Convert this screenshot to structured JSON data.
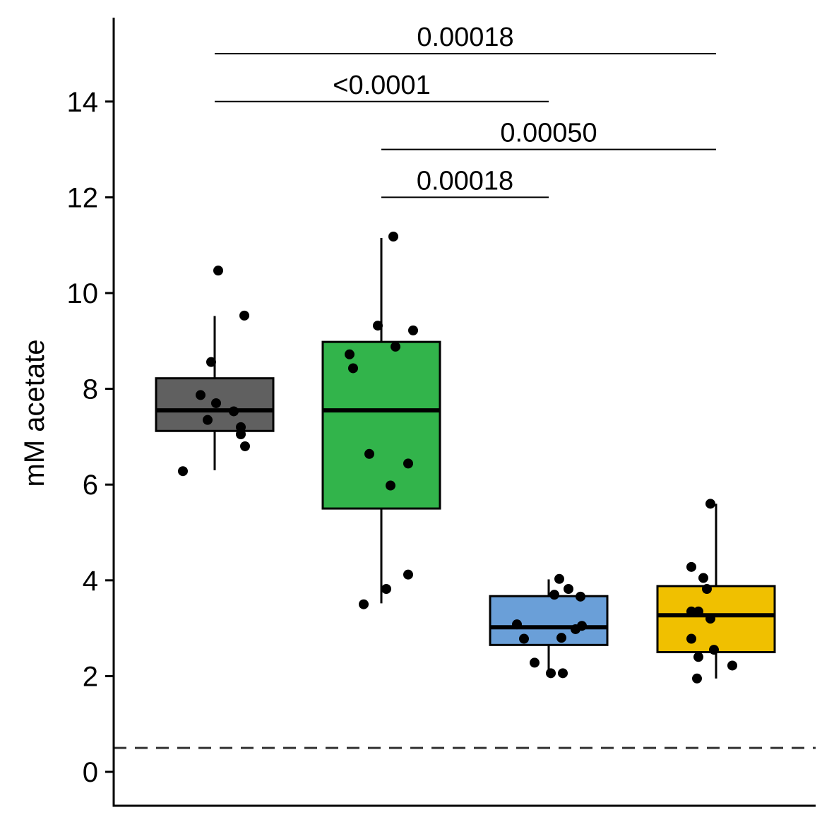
{
  "chart_data": {
    "type": "boxplot",
    "ylabel": "mM acetate",
    "xlabel": "",
    "ylim": [
      -0.7,
      15.7
    ],
    "yticks": [
      0,
      2,
      4,
      6,
      8,
      10,
      12,
      14
    ],
    "ytick_labels": [
      "0",
      "2",
      "4",
      "6",
      "8",
      "10",
      "12",
      "14"
    ],
    "grid": false,
    "reference_line": {
      "y": 0.5,
      "style": "dashed",
      "color": "#333333"
    },
    "groups": [
      {
        "color": "#606060",
        "box": {
          "whisker_low": 6.3,
          "q1": 7.12,
          "median": 7.55,
          "q3": 8.22,
          "whisker_high": 9.52
        },
        "points": [
          {
            "dx": 0.05,
            "y": 10.47
          },
          {
            "dx": 0.42,
            "y": 9.53
          },
          {
            "dx": -0.05,
            "y": 8.56
          },
          {
            "dx": -0.2,
            "y": 7.87
          },
          {
            "dx": 0.02,
            "y": 7.7
          },
          {
            "dx": 0.27,
            "y": 7.53
          },
          {
            "dx": -0.1,
            "y": 7.35
          },
          {
            "dx": 0.37,
            "y": 7.2
          },
          {
            "dx": 0.37,
            "y": 7.05
          },
          {
            "dx": 0.43,
            "y": 6.8
          },
          {
            "dx": -0.45,
            "y": 6.28
          }
        ]
      },
      {
        "color": "#32b44b",
        "box": {
          "whisker_low": 3.52,
          "q1": 5.5,
          "median": 7.55,
          "q3": 8.98,
          "whisker_high": 11.15
        },
        "points": [
          {
            "dx": 0.17,
            "y": 11.18
          },
          {
            "dx": -0.05,
            "y": 9.32
          },
          {
            "dx": 0.45,
            "y": 9.22
          },
          {
            "dx": 0.2,
            "y": 8.88
          },
          {
            "dx": -0.45,
            "y": 8.72
          },
          {
            "dx": -0.4,
            "y": 8.43
          },
          {
            "dx": -0.17,
            "y": 6.64
          },
          {
            "dx": 0.38,
            "y": 6.44
          },
          {
            "dx": 0.13,
            "y": 5.98
          },
          {
            "dx": 0.38,
            "y": 4.12
          },
          {
            "dx": 0.07,
            "y": 3.82
          },
          {
            "dx": -0.25,
            "y": 3.5
          }
        ]
      },
      {
        "color": "#6a9fd8",
        "box": {
          "whisker_low": 2.05,
          "q1": 2.65,
          "median": 3.02,
          "q3": 3.67,
          "whisker_high": 4.02
        },
        "points": [
          {
            "dx": 0.15,
            "y": 4.03
          },
          {
            "dx": 0.28,
            "y": 3.82
          },
          {
            "dx": 0.08,
            "y": 3.7
          },
          {
            "dx": 0.45,
            "y": 3.66
          },
          {
            "dx": -0.45,
            "y": 3.08
          },
          {
            "dx": 0.47,
            "y": 3.05
          },
          {
            "dx": 0.38,
            "y": 2.98
          },
          {
            "dx": -0.35,
            "y": 2.78
          },
          {
            "dx": 0.18,
            "y": 2.8
          },
          {
            "dx": -0.2,
            "y": 2.28
          },
          {
            "dx": 0.03,
            "y": 2.06
          },
          {
            "dx": 0.2,
            "y": 2.06
          }
        ]
      },
      {
        "color": "#f0c000",
        "box": {
          "whisker_low": 1.95,
          "q1": 2.5,
          "median": 3.27,
          "q3": 3.88,
          "whisker_high": 5.6
        },
        "points": [
          {
            "dx": -0.08,
            "y": 5.6
          },
          {
            "dx": -0.35,
            "y": 4.28
          },
          {
            "dx": -0.18,
            "y": 4.05
          },
          {
            "dx": -0.13,
            "y": 3.82
          },
          {
            "dx": -0.35,
            "y": 3.35
          },
          {
            "dx": -0.25,
            "y": 3.35
          },
          {
            "dx": -0.08,
            "y": 3.2
          },
          {
            "dx": -0.35,
            "y": 2.78
          },
          {
            "dx": -0.03,
            "y": 2.55
          },
          {
            "dx": 0.23,
            "y": 2.22
          },
          {
            "dx": -0.25,
            "y": 2.4
          },
          {
            "dx": -0.27,
            "y": 1.95
          }
        ]
      }
    ],
    "comparisons": [
      {
        "from": 0,
        "to": 3,
        "y": 15.0,
        "label": "0.00018"
      },
      {
        "from": 0,
        "to": 2,
        "y": 14.0,
        "label": "<0.0001"
      },
      {
        "from": 1,
        "to": 3,
        "y": 13.0,
        "label": "0.00050"
      },
      {
        "from": 1,
        "to": 2,
        "y": 12.0,
        "label": "0.00018"
      }
    ]
  }
}
